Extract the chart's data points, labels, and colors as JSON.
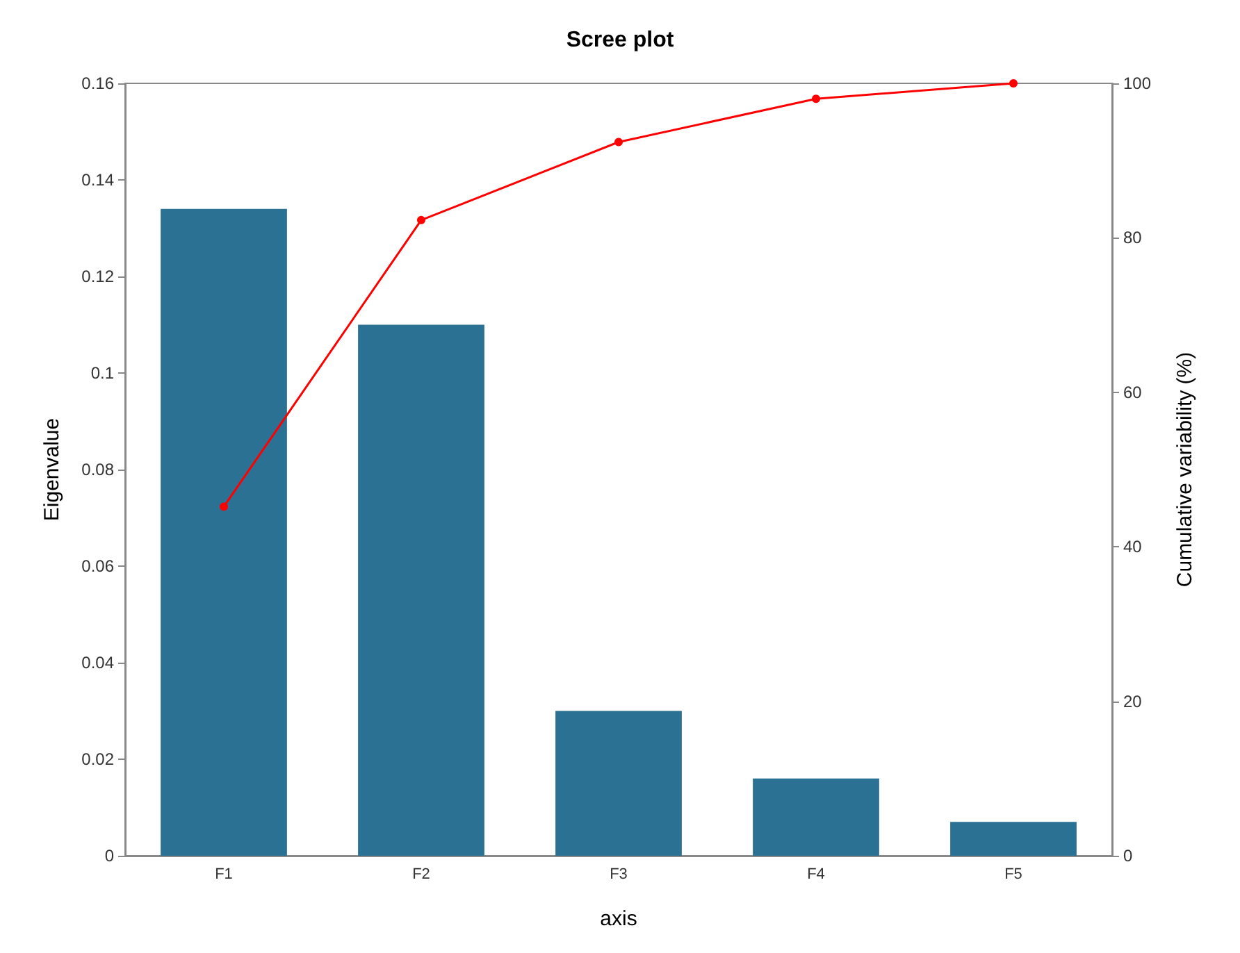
{
  "chart_data": {
    "type": "bar",
    "title": "Scree plot",
    "xlabel": "axis",
    "ylabel": "Eigenvalue",
    "y2label": "Cumulative variability (%)",
    "categories": [
      "F1",
      "F2",
      "F3",
      "F4",
      "F5"
    ],
    "series": [
      {
        "color": "#2b7193",
        "values": [
          0.134,
          0.11,
          0.03,
          0.016,
          0.007
        ]
      },
      {
        "type": "line",
        "axis": "y2",
        "color": "#ff0000",
        "marker": "circle",
        "values": [
          45.2,
          82.3,
          92.4,
          98.0,
          100
        ]
      }
    ],
    "ylim": [
      0,
      0.16
    ],
    "yticks": [
      0,
      0.02,
      0.04,
      0.06,
      0.08,
      0.1,
      0.12,
      0.14,
      0.16
    ],
    "y2lim": [
      0,
      100
    ],
    "y2ticks": [
      0,
      20,
      40,
      60,
      80,
      100
    ],
    "grid": false
  }
}
